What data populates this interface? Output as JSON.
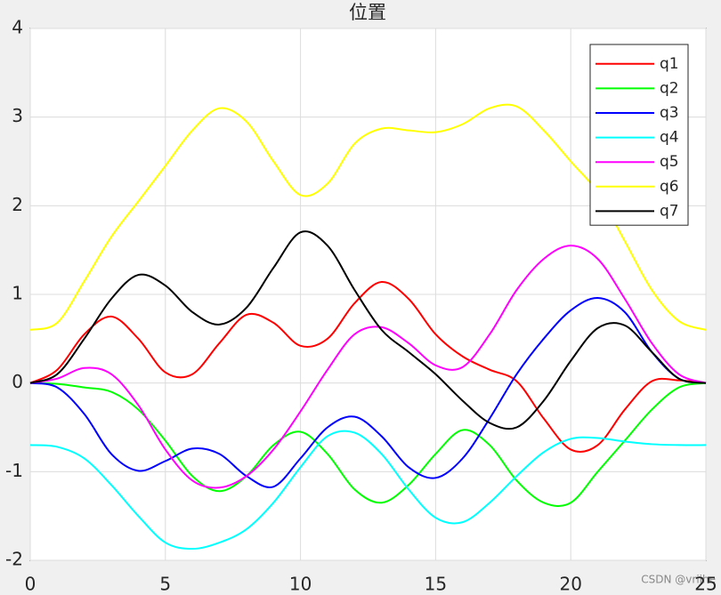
{
  "chart_data": {
    "type": "line",
    "title": "位置",
    "x": [
      0,
      1,
      2,
      3,
      4,
      5,
      6,
      7,
      8,
      9,
      10,
      11,
      12,
      13,
      14,
      15,
      16,
      17,
      18,
      19,
      20,
      21,
      22,
      23,
      24,
      25
    ],
    "series": [
      {
        "name": "q1",
        "color": "#ff0000",
        "values": [
          0,
          0.15,
          0.55,
          0.75,
          0.5,
          0.12,
          0.1,
          0.45,
          0.77,
          0.68,
          0.42,
          0.5,
          0.9,
          1.14,
          0.95,
          0.55,
          0.3,
          0.15,
          0.02,
          -0.4,
          -0.75,
          -0.7,
          -0.3,
          0.02,
          0.03,
          0
        ]
      },
      {
        "name": "q2",
        "color": "#00ff00",
        "values": [
          0,
          -0.01,
          -0.05,
          -0.1,
          -0.3,
          -0.65,
          -1.05,
          -1.22,
          -1.05,
          -0.7,
          -0.55,
          -0.8,
          -1.2,
          -1.35,
          -1.15,
          -0.8,
          -0.53,
          -0.7,
          -1.1,
          -1.35,
          -1.35,
          -1.0,
          -0.65,
          -0.3,
          -0.05,
          0
        ]
      },
      {
        "name": "q3",
        "color": "#0000ff",
        "values": [
          0,
          -0.05,
          -0.35,
          -0.8,
          -0.99,
          -0.88,
          -0.74,
          -0.8,
          -1.05,
          -1.17,
          -0.85,
          -0.5,
          -0.38,
          -0.6,
          -0.95,
          -1.07,
          -0.85,
          -0.4,
          0.1,
          0.5,
          0.82,
          0.96,
          0.8,
          0.35,
          0.05,
          0
        ]
      },
      {
        "name": "q4",
        "color": "#00ffff",
        "values": [
          -0.7,
          -0.72,
          -0.85,
          -1.15,
          -1.5,
          -1.8,
          -1.87,
          -1.8,
          -1.65,
          -1.35,
          -0.95,
          -0.6,
          -0.56,
          -0.8,
          -1.2,
          -1.52,
          -1.57,
          -1.35,
          -1.05,
          -0.78,
          -0.63,
          -0.62,
          -0.66,
          -0.69,
          -0.7,
          -0.7
        ]
      },
      {
        "name": "q5",
        "color": "#ff00ff",
        "values": [
          0,
          0.05,
          0.17,
          0.1,
          -0.25,
          -0.75,
          -1.1,
          -1.18,
          -1.05,
          -0.75,
          -0.32,
          0.15,
          0.55,
          0.63,
          0.45,
          0.2,
          0.18,
          0.55,
          1.05,
          1.4,
          1.55,
          1.4,
          0.95,
          0.45,
          0.1,
          0
        ]
      },
      {
        "name": "q6",
        "color": "#ffff00",
        "values": [
          0.6,
          0.68,
          1.15,
          1.65,
          2.05,
          2.45,
          2.85,
          3.1,
          2.95,
          2.5,
          2.12,
          2.25,
          2.7,
          2.87,
          2.85,
          2.83,
          2.92,
          3.1,
          3.12,
          2.85,
          2.5,
          2.15,
          1.6,
          1.05,
          0.7,
          0.6
        ]
      },
      {
        "name": "q7",
        "color": "#000000",
        "values": [
          0,
          0.1,
          0.5,
          0.95,
          1.22,
          1.1,
          0.8,
          0.66,
          0.85,
          1.3,
          1.7,
          1.55,
          1.05,
          0.6,
          0.35,
          0.1,
          -0.2,
          -0.45,
          -0.5,
          -0.2,
          0.25,
          0.62,
          0.65,
          0.35,
          0.05,
          0
        ]
      }
    ],
    "xlim": [
      0,
      25
    ],
    "xticks": [
      0,
      5,
      10,
      15,
      20,
      25
    ],
    "ylim": [
      -2,
      4
    ],
    "yticks": [
      -2,
      -1,
      0,
      1,
      2,
      3,
      4
    ],
    "grid": true,
    "legend": "upper right",
    "watermark": "CSDN @vrijhe"
  }
}
